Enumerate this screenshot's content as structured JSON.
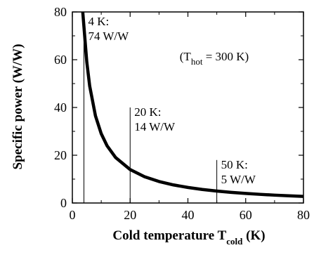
{
  "chart_data": {
    "type": "line",
    "xlabel_main": "Cold temperature T",
    "xlabel_sub": "cold",
    "xlabel_unit": " (K)",
    "ylabel": "Specific power (W/W)",
    "xlim": [
      0,
      80
    ],
    "ylim": [
      0,
      80
    ],
    "xticks": [
      "0",
      "20",
      "40",
      "60",
      "80"
    ],
    "yticks": [
      "0",
      "20",
      "40",
      "60",
      "80"
    ],
    "grid": false,
    "series": [
      {
        "x": [
          3.6,
          4,
          5,
          6,
          8,
          10,
          12,
          15,
          20,
          25,
          30,
          35,
          40,
          45,
          50,
          55,
          60,
          65,
          70,
          75,
          80
        ],
        "y": [
          82.3,
          74,
          59,
          49,
          36.5,
          29,
          24,
          19,
          14,
          11,
          9,
          7.57,
          6.5,
          5.67,
          5,
          4.45,
          4,
          3.62,
          3.29,
          3,
          2.75
        ]
      }
    ],
    "condition": {
      "prefix": "(T",
      "sub": "hot",
      "suffix": " = 300 K)"
    },
    "annotations": [
      {
        "x": 4,
        "y": 74,
        "line1": "4 K:",
        "line2": "74 W/W"
      },
      {
        "x": 20,
        "y": 14,
        "line1": "20 K:",
        "line2": "14 W/W"
      },
      {
        "x": 50,
        "y": 5,
        "line1": "50 K:",
        "line2": "5 W/W"
      }
    ]
  }
}
